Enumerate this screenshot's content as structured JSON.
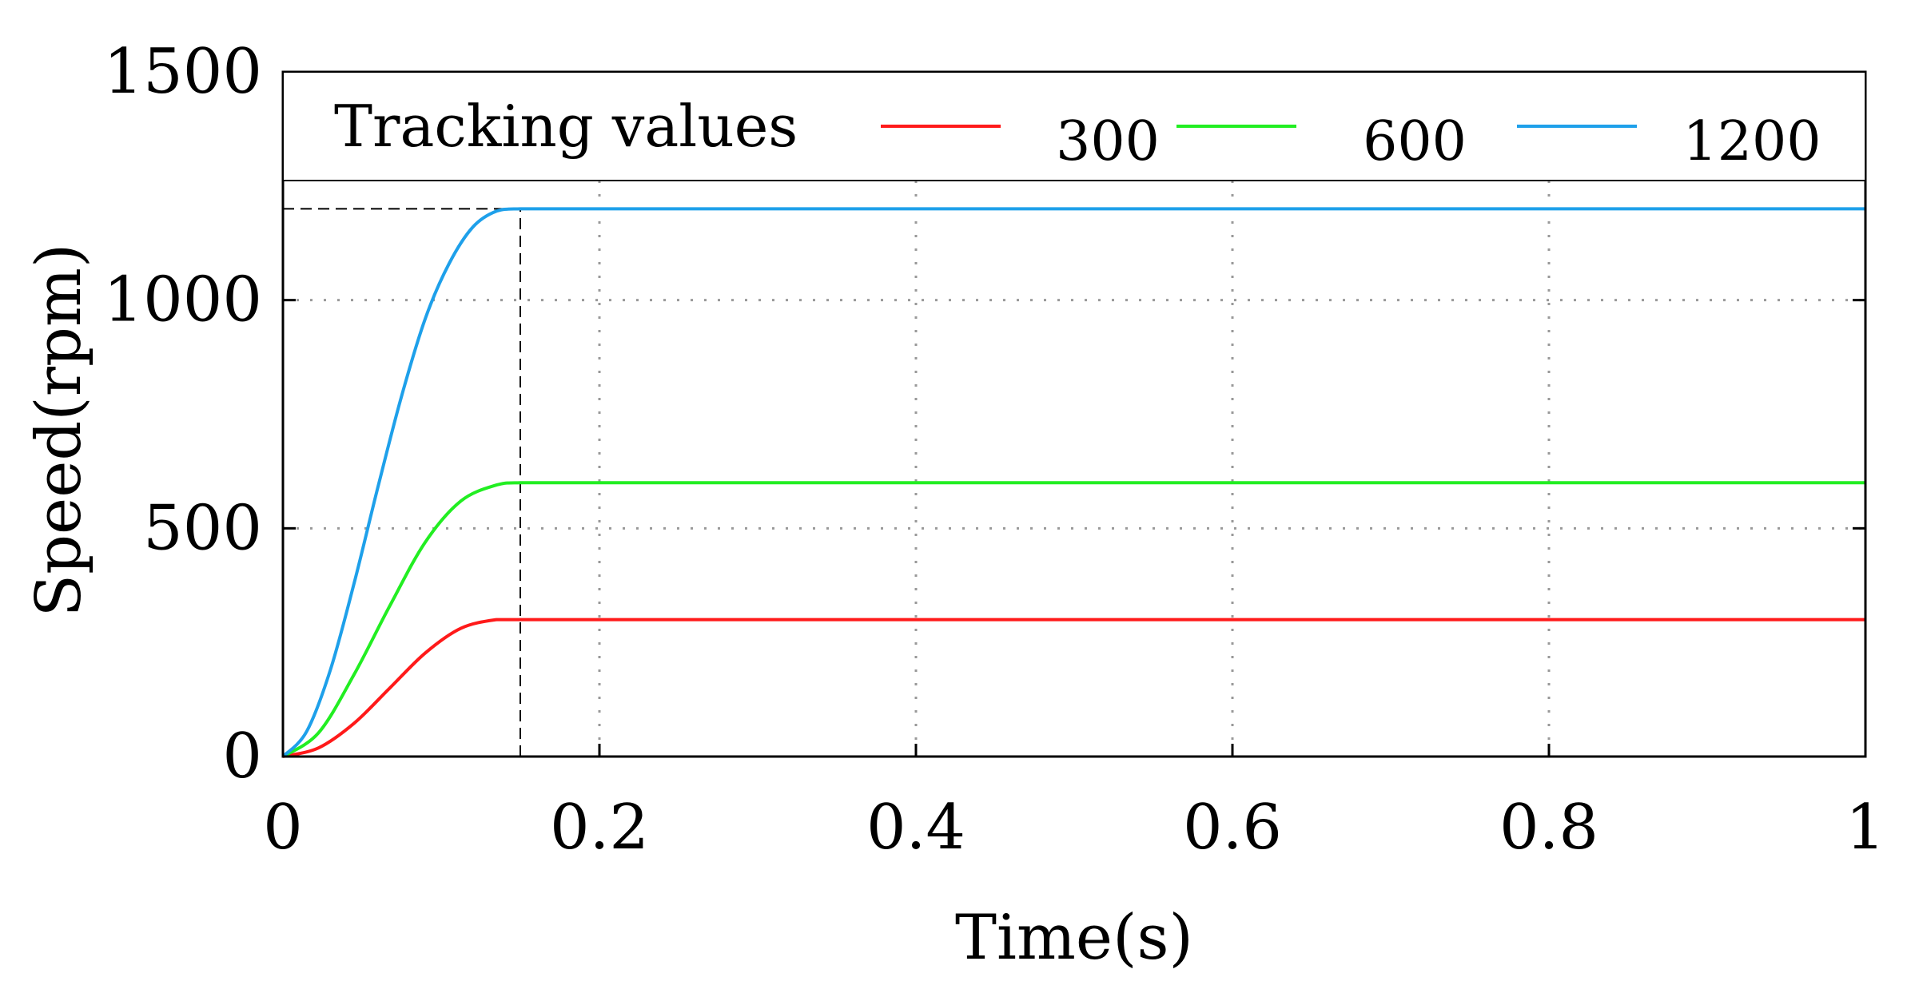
{
  "chart_data": {
    "type": "line",
    "title": "",
    "xlabel": "Time(s)",
    "ylabel": "Speed(rpm)",
    "xlim": [
      0,
      1
    ],
    "ylim": [
      0,
      1500
    ],
    "x_ticks": [
      "0",
      "0.2",
      "0.4",
      "0.6",
      "0.8",
      "1"
    ],
    "y_ticks": [
      "0",
      "500",
      "1000",
      "1500"
    ],
    "grid": true,
    "legend": {
      "title": "Tracking values",
      "placement": "top",
      "entries": [
        "300",
        "600",
        "1200"
      ]
    },
    "series": [
      {
        "name": "300",
        "color": "#ff1a1a",
        "x": [
          0,
          0.0225,
          0.045,
          0.0675,
          0.09,
          0.1125,
          0.135,
          0.15,
          0.2,
          0.4,
          0.6,
          0.8,
          1.0
        ],
        "y": [
          0,
          19,
          73,
          150,
          227,
          281,
          300,
          300,
          300,
          300,
          300,
          300,
          300
        ]
      },
      {
        "name": "600",
        "color": "#22ee22",
        "x": [
          0,
          0.0225,
          0.045,
          0.0675,
          0.09,
          0.1125,
          0.135,
          0.15,
          0.2,
          0.4,
          0.6,
          0.8,
          1.0
        ],
        "y": [
          0,
          52,
          180,
          330,
          470,
          560,
          595,
          600,
          600,
          600,
          600,
          600,
          600
        ]
      },
      {
        "name": "1200",
        "color": "#1ea0ea",
        "x": [
          0,
          0.015,
          0.03,
          0.045,
          0.06,
          0.075,
          0.09,
          0.105,
          0.12,
          0.135,
          0.15,
          0.2,
          0.4,
          0.6,
          0.8,
          1.0
        ],
        "y": [
          0,
          55,
          190,
          380,
          590,
          790,
          960,
          1080,
          1160,
          1195,
          1200,
          1200,
          1200,
          1200,
          1200,
          1200
        ]
      }
    ],
    "reference_lines": {
      "x": 0.15,
      "y": 1200,
      "style": "dashed"
    }
  }
}
